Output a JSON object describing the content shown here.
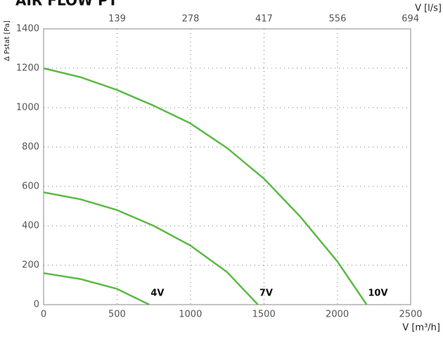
{
  "chart_data": {
    "type": "line",
    "title": "AIR FLOW PT",
    "xlabel": "V [m³/h]",
    "x2label": "V [l/s]",
    "ylabel": "Δ Pstat [Pa]",
    "xlim": [
      0,
      2500
    ],
    "xticks": [
      0,
      500,
      1000,
      1500,
      2000,
      2500
    ],
    "x2lim": [
      0,
      694.4
    ],
    "x2ticks": [
      139,
      278,
      417,
      556,
      694
    ],
    "ylim": [
      0,
      1400
    ],
    "yticks": [
      0,
      200,
      400,
      600,
      800,
      1000,
      1200,
      1400
    ],
    "grid": true,
    "series": [
      {
        "name": "4V",
        "color": "#5cb946",
        "x": [
          0,
          250,
          500,
          720
        ],
        "values": [
          160,
          130,
          80,
          0
        ]
      },
      {
        "name": "7V",
        "color": "#5cb946",
        "x": [
          0,
          250,
          500,
          750,
          1000,
          1250,
          1460
        ],
        "values": [
          570,
          535,
          480,
          400,
          300,
          165,
          0
        ]
      },
      {
        "name": "10V",
        "color": "#5cb946",
        "x": [
          0,
          250,
          500,
          750,
          1000,
          1250,
          1500,
          1750,
          2000,
          2200
        ],
        "values": [
          1200,
          1155,
          1090,
          1010,
          920,
          795,
          640,
          445,
          220,
          0
        ]
      }
    ]
  }
}
